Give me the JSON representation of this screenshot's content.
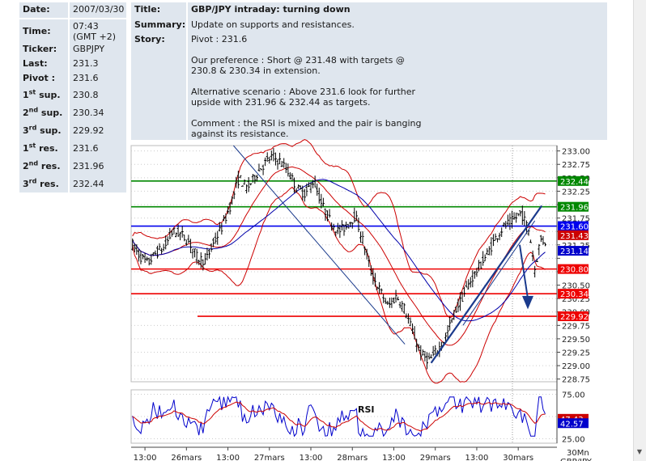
{
  "ticker_panel": {
    "rows": [
      {
        "label": "Date:",
        "value": "2007/03/30"
      },
      {
        "label": "Time:",
        "value": "07:43 (GMT +2)"
      },
      {
        "label": "Ticker:",
        "value": "GBPJPY"
      },
      {
        "label": "Last:",
        "value": "231.3"
      },
      {
        "label": "Pivot :",
        "value": "231.6"
      },
      {
        "label_num": "1",
        "label_sup": "st",
        "label_rest": " sup.",
        "value": "230.8"
      },
      {
        "label_num": "2",
        "label_sup": "nd",
        "label_rest": " sup.",
        "value": "230.34"
      },
      {
        "label_num": "3",
        "label_sup": "rd",
        "label_rest": " sup.",
        "value": "229.92"
      },
      {
        "label_num": "1",
        "label_sup": "st",
        "label_rest": " res.",
        "value": "231.6"
      },
      {
        "label_num": "2",
        "label_sup": "nd",
        "label_rest": " res.",
        "value": "231.96"
      },
      {
        "label_num": "3",
        "label_sup": "rd",
        "label_rest": " res.",
        "value": "232.44"
      }
    ]
  },
  "info_panel": {
    "title_label": "Title:",
    "title": "GBP/JPY intraday: turning down",
    "summary_label": "Summary:",
    "summary": "Update on supports and resistances.",
    "story_label": "Story:",
    "story": "Pivot : 231.6\n\nOur preference : Short @ 231.48 with targets @\n230.8 & 230.34 in extension.\n\nAlternative scenario : Above 231.6 look for further\nupside with 231.96 & 232.44 as targets.\n\nComment : the RSI is mixed and the pair is banging\nagainst its resistance."
  },
  "colors": {
    "panel_bg": "#dfe6ee",
    "candles": "#000000",
    "bollinger": "#cc0000",
    "moving_average": "#0000aa",
    "support": "#ee0000",
    "resistance_green": "#008800",
    "pivot": "#0000ee",
    "trend_arrow": "#1a3a8c",
    "grid": "#cccccc"
  },
  "chart_data": {
    "type": "candlestick",
    "title": "",
    "y_ticks": [
      228.75,
      229.0,
      229.25,
      229.5,
      229.75,
      230.0,
      230.25,
      230.5,
      230.75,
      231.0,
      231.25,
      231.5,
      231.75,
      232.0,
      232.25,
      232.5,
      232.75,
      233.0
    ],
    "y_tick_labels": [
      "228.75",
      "229.00",
      "229.25",
      "229.50",
      "229.75",
      "230.00",
      "230.25",
      "230.50",
      "",
      "",
      "231.25",
      "",
      "231.75",
      "",
      "232.25",
      "232.50",
      "232.75",
      "233.00"
    ],
    "ylim": [
      228.7,
      233.1
    ],
    "x_tick_labels": [
      "13:00",
      "26mars",
      "13:00",
      "27mars",
      "13:00",
      "28mars",
      "13:00",
      "29mars",
      "13:00",
      "30mars"
    ],
    "x_tick_positions": [
      0.5,
      2,
      3.5,
      5,
      6.5,
      8,
      9.5,
      11,
      12.5,
      14
    ],
    "x_range": [
      0,
      15.4
    ],
    "timeframe_label": "30Mn",
    "symbol_label": "GBP/JPY",
    "levels": [
      {
        "value": 232.44,
        "label": "232.44",
        "color": "#008800",
        "start": 0
      },
      {
        "value": 231.96,
        "label": "231.96",
        "color": "#008800",
        "start": 0
      },
      {
        "value": 231.6,
        "label": "231.60",
        "color": "#0000ee",
        "start": 0
      },
      {
        "value": 230.8,
        "label": "230.80",
        "color": "#ee0000",
        "start": 0
      },
      {
        "value": 230.34,
        "label": "230.34",
        "color": "#ee0000",
        "start": 0
      },
      {
        "value": 229.92,
        "label": "229.92",
        "color": "#ee0000",
        "start": 2.4
      }
    ],
    "extra_price_tags": [
      {
        "value": 231.43,
        "label": "231.43",
        "bg": "#cc0000"
      },
      {
        "value": 231.14,
        "label": "231.14",
        "bg": "#0000cc"
      }
    ],
    "close_path": [
      [
        0.0,
        231.3
      ],
      [
        0.3,
        231.05
      ],
      [
        0.6,
        230.9
      ],
      [
        0.9,
        231.1
      ],
      [
        1.2,
        231.2
      ],
      [
        1.5,
        231.5
      ],
      [
        1.8,
        231.45
      ],
      [
        2.1,
        231.3
      ],
      [
        2.4,
        231.0
      ],
      [
        2.7,
        230.95
      ],
      [
        3.0,
        231.3
      ],
      [
        3.3,
        231.6
      ],
      [
        3.6,
        232.0
      ],
      [
        3.9,
        232.5
      ],
      [
        4.2,
        232.3
      ],
      [
        4.5,
        232.55
      ],
      [
        4.8,
        232.75
      ],
      [
        5.1,
        232.9
      ],
      [
        5.4,
        232.8
      ],
      [
        5.7,
        232.6
      ],
      [
        6.0,
        232.3
      ],
      [
        6.3,
        232.2
      ],
      [
        6.6,
        232.45
      ],
      [
        6.9,
        232.0
      ],
      [
        7.2,
        231.7
      ],
      [
        7.5,
        231.5
      ],
      [
        7.8,
        231.6
      ],
      [
        8.1,
        231.8
      ],
      [
        8.4,
        231.3
      ],
      [
        8.7,
        230.7
      ],
      [
        9.0,
        230.4
      ],
      [
        9.3,
        230.1
      ],
      [
        9.6,
        230.3
      ],
      [
        9.9,
        230.05
      ],
      [
        10.2,
        229.6
      ],
      [
        10.5,
        229.2
      ],
      [
        10.8,
        229.1
      ],
      [
        11.1,
        229.3
      ],
      [
        11.4,
        229.55
      ],
      [
        11.7,
        230.0
      ],
      [
        12.0,
        230.3
      ],
      [
        12.3,
        230.6
      ],
      [
        12.6,
        230.85
      ],
      [
        12.9,
        231.1
      ],
      [
        13.2,
        231.4
      ],
      [
        13.5,
        231.6
      ],
      [
        13.8,
        231.7
      ],
      [
        14.1,
        231.85
      ],
      [
        14.4,
        231.5
      ],
      [
        14.6,
        230.8
      ],
      [
        14.8,
        231.35
      ],
      [
        15.0,
        231.3
      ]
    ],
    "rsi": {
      "label": "RSI",
      "y_ticks": [
        25,
        50,
        75
      ],
      "y_tick_labels": [
        "25.00",
        "",
        "75.00"
      ],
      "ylim": [
        20,
        80
      ],
      "tags": [
        {
          "value": 47.43,
          "label": "47.43",
          "bg": "#cc0000"
        },
        {
          "value": 42.5,
          "label": "42.57",
          "bg": "#0000cc"
        }
      ]
    }
  }
}
